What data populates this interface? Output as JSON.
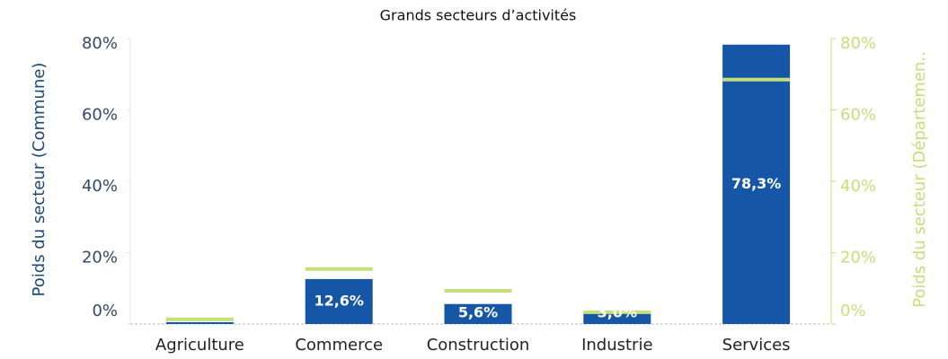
{
  "chart_data": {
    "type": "bar",
    "title": "Grands secteurs d’activités",
    "y_label": "Poids du secteur (Commune)",
    "y2_label": "Poids du secteur (Départemen..",
    "categories": [
      "Agriculture",
      "Commerce",
      "Construction",
      "Industrie",
      "Services"
    ],
    "series": [
      {
        "color": "#1557a6",
        "values": [
          0.5,
          12.6,
          5.6,
          3.0,
          78.3
        ],
        "value_labels": [
          null,
          "12,6%",
          "5,6%",
          "3,0%",
          "78,3%"
        ]
      },
      {
        "color": "#c5e07a",
        "axis": "y2",
        "values": [
          1.3,
          15.4,
          9.3,
          3.3,
          68.5
        ]
      }
    ],
    "ylim": [
      0,
      80
    ],
    "yticks": [
      {
        "value": 0,
        "label": "0%"
      },
      {
        "value": 20,
        "label": "20%"
      },
      {
        "value": 40,
        "label": "40%"
      },
      {
        "value": 60,
        "label": "60%"
      },
      {
        "value": 80,
        "label": "80%"
      }
    ],
    "y2lim": [
      0,
      80
    ],
    "y2ticks": [
      {
        "value": 0,
        "label": "0%"
      },
      {
        "value": 20,
        "label": "20%"
      },
      {
        "value": 40,
        "label": "40%"
      },
      {
        "value": 60,
        "label": "60%"
      },
      {
        "value": 80,
        "label": "80%"
      }
    ]
  }
}
